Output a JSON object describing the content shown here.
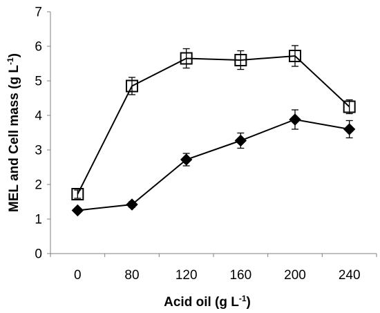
{
  "chart_data": {
    "type": "line",
    "title": "",
    "xlabel": {
      "main": "Acid oil (g L",
      "sup": "-1",
      "close": ")"
    },
    "ylabel": {
      "main": "MEL and Cell mass (g L",
      "sup": "-1",
      "close": ")"
    },
    "categories": [
      "0",
      "80",
      "120",
      "160",
      "200",
      "240"
    ],
    "ylim": [
      0,
      7
    ],
    "yticks": [
      "0",
      "1",
      "2",
      "3",
      "4",
      "5",
      "6",
      "7"
    ],
    "grid": false,
    "legend": "none",
    "series": [
      {
        "marker": "open-square",
        "color": "#000000",
        "values": [
          1.72,
          4.85,
          5.65,
          5.6,
          5.72,
          4.25
        ],
        "errors": [
          0.12,
          0.25,
          0.28,
          0.27,
          0.3,
          0.2
        ]
      },
      {
        "marker": "filled-diamond",
        "color": "#000000",
        "values": [
          1.25,
          1.42,
          2.72,
          3.27,
          3.88,
          3.6
        ],
        "errors": [
          0.06,
          0.08,
          0.18,
          0.22,
          0.28,
          0.25
        ]
      }
    ]
  }
}
